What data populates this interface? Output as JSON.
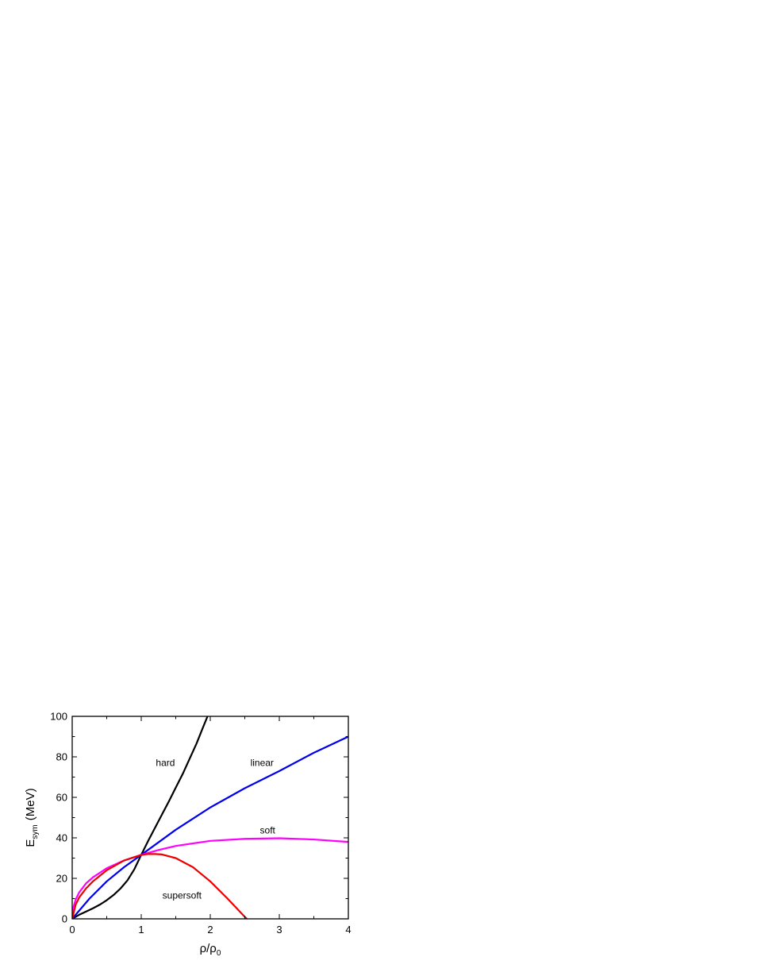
{
  "chart_data": {
    "type": "line",
    "title": "",
    "xlabel": {
      "main": "ρ/ρ",
      "sub": "0"
    },
    "ylabel": {
      "main": "E",
      "sub": "sym",
      "unit": "(MeV)"
    },
    "xlim": [
      0,
      4
    ],
    "ylim": [
      0,
      100
    ],
    "xticks": [
      0,
      1,
      2,
      3,
      4
    ],
    "yticks": [
      0,
      20,
      40,
      60,
      80,
      100
    ],
    "grid": false,
    "legend": "none",
    "series": [
      {
        "name": "hard",
        "color": "#000000",
        "x": [
          0,
          0.1,
          0.2,
          0.3,
          0.4,
          0.5,
          0.6,
          0.7,
          0.8,
          0.9,
          1.0,
          1.1,
          1.2,
          1.3,
          1.4,
          1.5,
          1.6,
          1.7,
          1.8,
          1.9,
          1.96
        ],
        "y": [
          0,
          2.0,
          3.6,
          5.2,
          7.0,
          9.2,
          11.8,
          15.0,
          19.0,
          24.5,
          31.6,
          38.5,
          45.0,
          51.5,
          58.0,
          64.8,
          71.5,
          79.0,
          86.5,
          95.0,
          100
        ]
      },
      {
        "name": "linear",
        "color": "#0000ee",
        "x": [
          0,
          0.25,
          0.5,
          0.75,
          1.0,
          1.5,
          2.0,
          2.5,
          3.0,
          3.5,
          4.0
        ],
        "y": [
          0,
          10.0,
          18.5,
          25.5,
          31.6,
          44.0,
          55.0,
          64.5,
          73.0,
          82.0,
          90.0
        ]
      },
      {
        "name": "soft",
        "color": "#ff00ff",
        "x": [
          0,
          0.02,
          0.05,
          0.1,
          0.2,
          0.3,
          0.5,
          0.75,
          1.0,
          1.25,
          1.5,
          2.0,
          2.5,
          3.0,
          3.5,
          4.0
        ],
        "y": [
          0,
          6.0,
          9.5,
          13.0,
          17.5,
          20.5,
          25.0,
          28.8,
          31.6,
          34.0,
          36.0,
          38.5,
          39.5,
          39.8,
          39.2,
          38.0
        ]
      },
      {
        "name": "supersoft",
        "color": "#ee0000",
        "x": [
          0,
          0.05,
          0.1,
          0.2,
          0.3,
          0.5,
          0.75,
          1.0,
          1.1,
          1.2,
          1.3,
          1.5,
          1.75,
          2.0,
          2.25,
          2.5,
          2.53
        ],
        "y": [
          0,
          7.0,
          10.5,
          15.0,
          18.5,
          24.0,
          28.8,
          31.6,
          32.0,
          32.0,
          31.8,
          30.0,
          25.5,
          18.5,
          10.0,
          1.0,
          0
        ]
      }
    ],
    "annotations": [
      {
        "text": "hard",
        "x": 1.35,
        "y": 75.5
      },
      {
        "text": "linear",
        "x": 2.75,
        "y": 75.5
      },
      {
        "text": "soft",
        "x": 2.83,
        "y": 42.2
      },
      {
        "text": "supersoft",
        "x": 1.59,
        "y": 10.0
      }
    ]
  }
}
